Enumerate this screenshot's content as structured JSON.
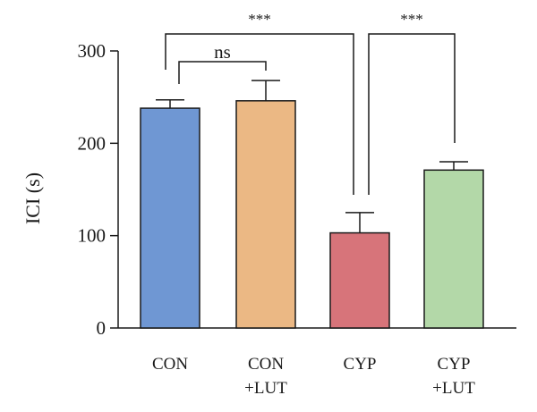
{
  "chart_data": {
    "type": "bar",
    "ylabel": "ICI (s)",
    "ylim": [
      0,
      300
    ],
    "yticks": [
      0,
      100,
      200,
      300
    ],
    "grid": false,
    "categories": [
      {
        "line1": "CON",
        "line2": ""
      },
      {
        "line1": "CON",
        "line2": "+LUT"
      },
      {
        "line1": "CYP",
        "line2": ""
      },
      {
        "line1": "CYP",
        "line2": "+LUT"
      }
    ],
    "values": [
      238,
      246,
      103,
      171
    ],
    "errors": [
      9,
      22,
      22,
      9
    ],
    "colors": [
      "#6f97d3",
      "#ebb884",
      "#d7747a",
      "#b3d8a8"
    ],
    "significance": [
      {
        "from": 0,
        "to": 1,
        "label": "ns"
      },
      {
        "from": 0,
        "to": 2,
        "label": "***"
      },
      {
        "from": 2,
        "to": 3,
        "label": "***"
      }
    ]
  }
}
